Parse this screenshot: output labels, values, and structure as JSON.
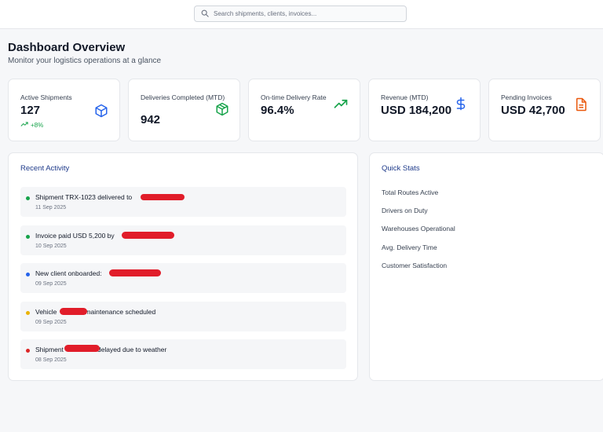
{
  "search": {
    "placeholder": "Search shipments, clients, invoices..."
  },
  "page": {
    "title": "Dashboard Overview",
    "subtitle": "Monitor your logistics operations at a glance"
  },
  "kpis": [
    {
      "label": "Active Shipments",
      "value": "127",
      "trend": "+8%",
      "icon": "cube-icon",
      "color": "#2563eb"
    },
    {
      "label": "Deliveries Completed (MTD)",
      "value": "942",
      "icon": "package-icon",
      "color": "#16a34a"
    },
    {
      "label": "On-time Delivery Rate",
      "value": "96.4%",
      "icon": "trending-up-icon",
      "color": "#16a34a"
    },
    {
      "label": "Revenue (MTD)",
      "value": "USD 184,200",
      "icon": "dollar-icon",
      "color": "#2563eb"
    },
    {
      "label": "Pending Invoices",
      "value": "USD 42,700",
      "icon": "document-icon",
      "color": "#ea580c"
    }
  ],
  "recent_activity": {
    "title": "Recent Activity",
    "items": [
      {
        "text": "Shipment TRX-1023 delivered to",
        "date": "11 Sep 2025",
        "status_color": "#16a34a"
      },
      {
        "text": "Invoice paid USD 5,200 by",
        "date": "10 Sep 2025",
        "status_color": "#16a34a"
      },
      {
        "text": "New client onboarded:",
        "date": "09 Sep 2025",
        "status_color": "#2563eb"
      },
      {
        "text_before": "Vehicle",
        "text_after": "maintenance scheduled",
        "date": "09 Sep 2025",
        "status_color": "#eab308"
      },
      {
        "text_before": "Shipment",
        "text_after": "delayed due to weather",
        "date": "08 Sep 2025",
        "status_color": "#dc2626"
      }
    ]
  },
  "quick_stats": {
    "title": "Quick Stats",
    "items": [
      "Total Routes Active",
      "Drivers on Duty",
      "Warehouses Operational",
      "Avg. Delivery Time",
      "Customer Satisfaction"
    ]
  }
}
